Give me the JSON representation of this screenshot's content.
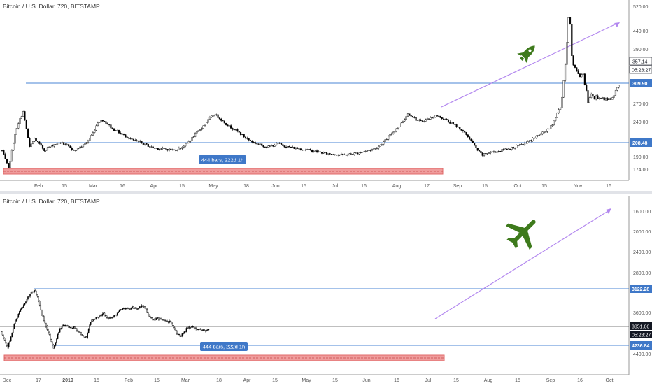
{
  "chart_data": [
    {
      "type": "candlestick",
      "title": "Bitcoin / U.S. Dollar, 720, BITSTAMP",
      "x_ticks": [
        "Feb",
        "15",
        "Mar",
        "16",
        "Apr",
        "15",
        "May",
        "18",
        "Jun",
        "15",
        "Jul",
        "16",
        "Aug",
        "17",
        "Sep",
        "15",
        "Oct",
        "15",
        "Nov",
        "16"
      ],
      "y_ticks": [
        "520.00",
        "440.00",
        "390.00",
        "340.00",
        "309.90",
        "270.00",
        "240.00",
        "208.48",
        "190.00",
        "174.00"
      ],
      "axis_labels": {
        "price": "357.14",
        "time": "05:28:27",
        "upper": "309.90",
        "lower": "208.48"
      },
      "ylim": [
        164,
        535
      ],
      "resistance": 309.9,
      "support": 208.48,
      "range_note": "444 bars, 222d 1h",
      "path": [
        [
          0,
          225
        ],
        [
          4,
          188
        ],
        [
          8,
          260
        ],
        [
          11,
          290
        ],
        [
          13,
          305
        ],
        [
          15,
          270
        ],
        [
          17,
          232
        ],
        [
          20,
          250
        ],
        [
          23,
          238
        ],
        [
          26,
          226
        ],
        [
          29,
          233
        ],
        [
          32,
          238
        ],
        [
          36,
          242
        ],
        [
          40,
          236
        ],
        [
          43,
          226
        ],
        [
          46,
          229
        ],
        [
          50,
          236
        ],
        [
          53,
          246
        ],
        [
          56,
          262
        ],
        [
          59,
          284
        ],
        [
          62,
          288
        ],
        [
          65,
          280
        ],
        [
          68,
          270
        ],
        [
          71,
          265
        ],
        [
          74,
          258
        ],
        [
          77,
          254
        ],
        [
          80,
          247
        ],
        [
          83,
          244
        ],
        [
          86,
          241
        ],
        [
          89,
          237
        ],
        [
          92,
          232
        ],
        [
          95,
          230
        ],
        [
          98,
          229
        ],
        [
          102,
          228
        ],
        [
          106,
          226
        ],
        [
          110,
          231
        ],
        [
          113,
          238
        ],
        [
          116,
          247
        ],
        [
          119,
          259
        ],
        [
          122,
          269
        ],
        [
          125,
          280
        ],
        [
          128,
          292
        ],
        [
          131,
          300
        ],
        [
          134,
          292
        ],
        [
          137,
          283
        ],
        [
          140,
          275
        ],
        [
          143,
          269
        ],
        [
          146,
          262
        ],
        [
          149,
          254
        ],
        [
          152,
          247
        ],
        [
          155,
          242
        ],
        [
          158,
          238
        ],
        [
          161,
          235
        ],
        [
          164,
          233
        ],
        [
          167,
          236
        ],
        [
          170,
          240
        ],
        [
          173,
          236
        ],
        [
          176,
          233
        ],
        [
          179,
          231
        ],
        [
          182,
          230
        ],
        [
          185,
          228
        ],
        [
          188,
          227
        ],
        [
          191,
          225
        ],
        [
          194,
          223
        ],
        [
          197,
          221
        ],
        [
          200,
          219
        ],
        [
          205,
          218
        ],
        [
          210,
          216
        ],
        [
          215,
          218
        ],
        [
          220,
          221
        ],
        [
          225,
          225
        ],
        [
          230,
          230
        ],
        [
          233,
          237
        ],
        [
          236,
          246
        ],
        [
          239,
          257
        ],
        [
          242,
          267
        ],
        [
          245,
          279
        ],
        [
          248,
          291
        ],
        [
          250,
          301
        ],
        [
          252,
          298
        ],
        [
          255,
          289
        ],
        [
          258,
          285
        ],
        [
          261,
          289
        ],
        [
          264,
          292
        ],
        [
          267,
          297
        ],
        [
          270,
          294
        ],
        [
          273,
          289
        ],
        [
          276,
          283
        ],
        [
          279,
          277
        ],
        [
          282,
          271
        ],
        [
          284,
          264
        ],
        [
          286,
          258
        ],
        [
          288,
          250
        ],
        [
          290,
          240
        ],
        [
          292,
          230
        ],
        [
          294,
          222
        ],
        [
          296,
          216
        ],
        [
          298,
          219
        ],
        [
          301,
          222
        ],
        [
          304,
          223
        ],
        [
          307,
          225
        ],
        [
          310,
          228
        ],
        [
          313,
          230
        ],
        [
          316,
          233
        ],
        [
          319,
          236
        ],
        [
          322,
          240
        ],
        [
          325,
          245
        ],
        [
          328,
          252
        ],
        [
          331,
          258
        ],
        [
          334,
          263
        ],
        [
          337,
          270
        ],
        [
          339,
          280
        ],
        [
          341,
          293
        ],
        [
          342,
          303
        ],
        [
          344,
          315
        ],
        [
          345,
          335
        ],
        [
          346,
          370
        ],
        [
          347,
          400
        ],
        [
          348,
          450
        ],
        [
          349,
          500
        ],
        [
          350,
          485
        ],
        [
          351,
          420
        ],
        [
          352,
          400
        ],
        [
          354,
          390
        ],
        [
          356,
          378
        ],
        [
          358,
          385
        ],
        [
          359,
          360
        ],
        [
          360,
          350
        ],
        [
          361,
          325
        ],
        [
          362,
          335
        ],
        [
          363,
          340
        ],
        [
          364,
          338
        ],
        [
          365,
          331
        ],
        [
          366,
          338
        ],
        [
          367,
          333
        ],
        [
          368,
          335
        ],
        [
          369,
          332
        ],
        [
          370,
          334
        ],
        [
          371,
          330
        ],
        [
          372,
          333
        ],
        [
          373,
          330
        ],
        [
          374,
          334
        ],
        [
          375,
          332
        ],
        [
          376,
          336
        ],
        [
          377,
          340
        ],
        [
          378,
          350
        ],
        [
          380,
          360
        ]
      ],
      "drawings": {
        "arrow": "up-trend",
        "icon": "rocket-icon"
      }
    },
    {
      "type": "candlestick",
      "title": "Bitcoin / U.S. Dollar, 720, BITSTAMP",
      "x_ticks": [
        "Dec",
        "17",
        "2019",
        "15",
        "Feb",
        "15",
        "Mar",
        "18",
        "Apr",
        "15",
        "May",
        "15",
        "Jun",
        "16",
        "Jul",
        "15",
        "Aug",
        "15",
        "Sep",
        "16",
        "Oct"
      ],
      "y_ticks": [
        "1600.00",
        "2000.00",
        "2400.00",
        "2800.00",
        "3122.28",
        "3600.00",
        "3851.66",
        "4236.84",
        "4400.00"
      ],
      "axis_labels": {
        "price": "3851.66",
        "time": "05:28:27",
        "upper": "3122.28",
        "lower": "4236.84"
      },
      "ylim": [
        4680,
        1380
      ],
      "resistance": 3122.28,
      "support": 4236.84,
      "range_note": "444 bars, 222d 1h",
      "path": [
        [
          0,
          3880
        ],
        [
          3,
          4060
        ],
        [
          6,
          4180
        ],
        [
          9,
          3980
        ],
        [
          12,
          3740
        ],
        [
          16,
          3560
        ],
        [
          20,
          3420
        ],
        [
          24,
          3300
        ],
        [
          27,
          3180
        ],
        [
          30,
          3140
        ],
        [
          32,
          3150
        ],
        [
          34,
          3230
        ],
        [
          36,
          3400
        ],
        [
          38,
          3560
        ],
        [
          41,
          3720
        ],
        [
          44,
          3880
        ],
        [
          47,
          4080
        ],
        [
          49,
          4200
        ],
        [
          51,
          4070
        ],
        [
          53,
          3930
        ],
        [
          56,
          3820
        ],
        [
          59,
          3760
        ],
        [
          62,
          3780
        ],
        [
          65,
          3830
        ],
        [
          68,
          3820
        ],
        [
          71,
          3860
        ],
        [
          74,
          3900
        ],
        [
          77,
          3970
        ],
        [
          80,
          3990
        ],
        [
          82,
          3840
        ],
        [
          84,
          3700
        ],
        [
          87,
          3660
        ],
        [
          90,
          3630
        ],
        [
          93,
          3600
        ],
        [
          96,
          3560
        ],
        [
          99,
          3620
        ],
        [
          102,
          3640
        ],
        [
          105,
          3600
        ],
        [
          108,
          3560
        ],
        [
          111,
          3500
        ],
        [
          114,
          3470
        ],
        [
          117,
          3450
        ],
        [
          120,
          3470
        ],
        [
          123,
          3440
        ],
        [
          126,
          3460
        ],
        [
          129,
          3450
        ],
        [
          132,
          3420
        ],
        [
          135,
          3460
        ],
        [
          138,
          3570
        ],
        [
          141,
          3650
        ],
        [
          144,
          3660
        ],
        [
          147,
          3640
        ],
        [
          150,
          3660
        ],
        [
          153,
          3680
        ],
        [
          156,
          3690
        ],
        [
          159,
          3720
        ],
        [
          162,
          3820
        ],
        [
          165,
          3910
        ],
        [
          168,
          3960
        ],
        [
          171,
          3930
        ],
        [
          174,
          3840
        ],
        [
          177,
          3800
        ],
        [
          180,
          3810
        ],
        [
          183,
          3840
        ],
        [
          186,
          3830
        ],
        [
          189,
          3860
        ],
        [
          192,
          3880
        ],
        [
          195,
          3860
        ]
      ],
      "drawings": {
        "arrow": "up-trend",
        "icon": "airplane-icon"
      }
    }
  ],
  "colors": {
    "bull": "#ffffff",
    "bear": "#000000",
    "level": "#4a84d4",
    "label_bg": "#3f78c8",
    "range": "#ef9c9c",
    "range_border": "#e06a6a",
    "arrow": "#b388ef",
    "icon": "#3e7a1c",
    "grid": "#f0f3f7",
    "axis_text": "#555555",
    "axis_line": "#9a9a9a",
    "dark_label": "#131722"
  }
}
